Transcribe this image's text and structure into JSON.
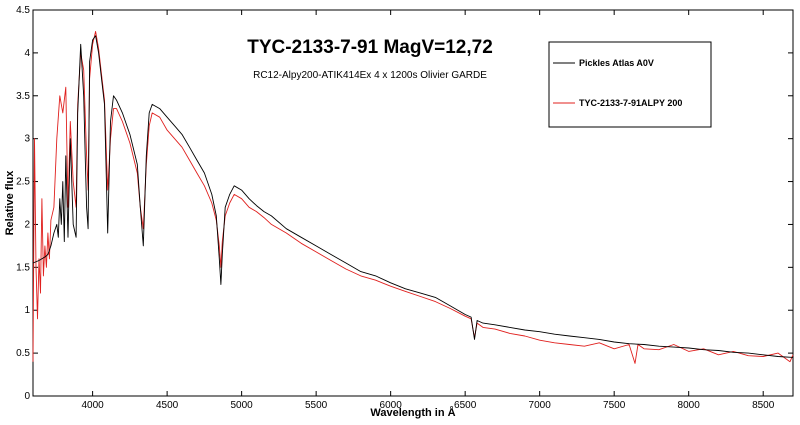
{
  "chart_data": {
    "type": "line",
    "title": "TYC-2133-7-91 MagV=12,72",
    "subtitle": "RC12-Alpy200-ATIK414Ex 4 x 1200s Olivier GARDE",
    "xlabel": "Wavelength in Å",
    "ylabel": "Relative flux",
    "xlim": [
      3600,
      8700
    ],
    "ylim": [
      0,
      4.5
    ],
    "xticks": [
      4000,
      4500,
      5000,
      5500,
      6000,
      6500,
      7000,
      7500,
      8000,
      8500
    ],
    "yticks": [
      0,
      0.5,
      1,
      1.5,
      2,
      2.5,
      3,
      3.5,
      4,
      4.5
    ],
    "grid": false,
    "legend": "top-right",
    "series": [
      {
        "name": "Pickles Atlas A0V",
        "color": "#000000",
        "x": [
          3600,
          3640,
          3680,
          3700,
          3720,
          3740,
          3760,
          3770,
          3780,
          3790,
          3800,
          3810,
          3820,
          3835,
          3850,
          3870,
          3889,
          3900,
          3920,
          3940,
          3950,
          3960,
          3970,
          3980,
          4000,
          4020,
          4040,
          4060,
          4080,
          4101,
          4120,
          4140,
          4160,
          4200,
          4250,
          4300,
          4320,
          4340,
          4360,
          4380,
          4400,
          4450,
          4500,
          4550,
          4600,
          4650,
          4700,
          4750,
          4800,
          4830,
          4850,
          4861,
          4870,
          4890,
          4920,
          4950,
          5000,
          5050,
          5100,
          5150,
          5200,
          5300,
          5400,
          5500,
          5600,
          5700,
          5800,
          5900,
          6000,
          6100,
          6200,
          6300,
          6400,
          6500,
          6540,
          6563,
          6580,
          6620,
          6700,
          6800,
          6900,
          7000,
          7100,
          7200,
          7300,
          7400,
          7500,
          7600,
          7700,
          7800,
          7900,
          8000,
          8100,
          8200,
          8300,
          8400,
          8500,
          8600,
          8700
        ],
        "y": [
          1.55,
          1.58,
          1.62,
          1.65,
          1.75,
          1.9,
          2.0,
          1.85,
          2.3,
          2.0,
          2.5,
          1.8,
          2.8,
          1.85,
          3.0,
          2.0,
          1.85,
          3.3,
          4.1,
          3.5,
          2.8,
          2.2,
          1.95,
          3.9,
          4.15,
          4.2,
          4.0,
          3.7,
          3.4,
          1.9,
          3.2,
          3.5,
          3.45,
          3.3,
          3.05,
          2.7,
          2.2,
          1.75,
          2.8,
          3.3,
          3.4,
          3.35,
          3.25,
          3.15,
          3.05,
          2.9,
          2.75,
          2.6,
          2.35,
          2.1,
          1.6,
          1.3,
          1.65,
          2.2,
          2.35,
          2.45,
          2.4,
          2.3,
          2.22,
          2.15,
          2.1,
          1.95,
          1.85,
          1.75,
          1.65,
          1.55,
          1.45,
          1.4,
          1.32,
          1.25,
          1.2,
          1.15,
          1.05,
          0.95,
          0.92,
          0.66,
          0.88,
          0.85,
          0.83,
          0.8,
          0.77,
          0.75,
          0.72,
          0.7,
          0.68,
          0.66,
          0.63,
          0.61,
          0.6,
          0.58,
          0.57,
          0.56,
          0.54,
          0.53,
          0.51,
          0.5,
          0.48,
          0.46,
          0.45
        ]
      },
      {
        "name": "TYC-2133-7-91ALPY 200",
        "color": "#e0201e",
        "x": [
          3600,
          3610,
          3620,
          3630,
          3640,
          3650,
          3660,
          3670,
          3680,
          3690,
          3700,
          3710,
          3720,
          3740,
          3760,
          3780,
          3800,
          3820,
          3835,
          3850,
          3870,
          3889,
          3900,
          3920,
          3940,
          3960,
          3970,
          3980,
          4000,
          4020,
          4040,
          4060,
          4080,
          4101,
          4120,
          4140,
          4160,
          4200,
          4250,
          4300,
          4320,
          4340,
          4360,
          4380,
          4400,
          4450,
          4500,
          4550,
          4600,
          4650,
          4700,
          4750,
          4800,
          4830,
          4850,
          4861,
          4870,
          4890,
          4920,
          4950,
          5000,
          5050,
          5100,
          5150,
          5200,
          5300,
          5400,
          5500,
          5600,
          5700,
          5800,
          5900,
          6000,
          6100,
          6200,
          6300,
          6400,
          6500,
          6540,
          6563,
          6580,
          6620,
          6700,
          6800,
          6900,
          7000,
          7100,
          7200,
          7300,
          7400,
          7500,
          7600,
          7640,
          7660,
          7700,
          7800,
          7900,
          8000,
          8100,
          8200,
          8300,
          8400,
          8500,
          8600,
          8680,
          8700
        ],
        "y": [
          0.4,
          3.0,
          1.5,
          0.9,
          1.6,
          1.2,
          2.3,
          1.4,
          1.75,
          1.5,
          1.9,
          1.6,
          2.05,
          2.2,
          3.0,
          3.5,
          3.3,
          3.6,
          2.2,
          3.2,
          2.5,
          2.2,
          3.4,
          4.0,
          3.8,
          2.8,
          2.4,
          3.7,
          4.1,
          4.25,
          4.05,
          3.75,
          3.45,
          2.4,
          3.0,
          3.35,
          3.35,
          3.2,
          2.95,
          2.6,
          2.2,
          1.95,
          2.7,
          3.15,
          3.3,
          3.25,
          3.1,
          3.0,
          2.9,
          2.75,
          2.6,
          2.45,
          2.25,
          2.05,
          1.75,
          1.5,
          1.8,
          2.1,
          2.25,
          2.35,
          2.3,
          2.2,
          2.15,
          2.08,
          2.0,
          1.9,
          1.78,
          1.68,
          1.58,
          1.48,
          1.4,
          1.35,
          1.28,
          1.22,
          1.16,
          1.1,
          1.02,
          0.93,
          0.9,
          0.68,
          0.85,
          0.8,
          0.78,
          0.73,
          0.7,
          0.65,
          0.62,
          0.6,
          0.58,
          0.62,
          0.55,
          0.6,
          0.38,
          0.6,
          0.55,
          0.54,
          0.6,
          0.52,
          0.55,
          0.48,
          0.52,
          0.47,
          0.46,
          0.5,
          0.4,
          0.48
        ]
      }
    ]
  }
}
